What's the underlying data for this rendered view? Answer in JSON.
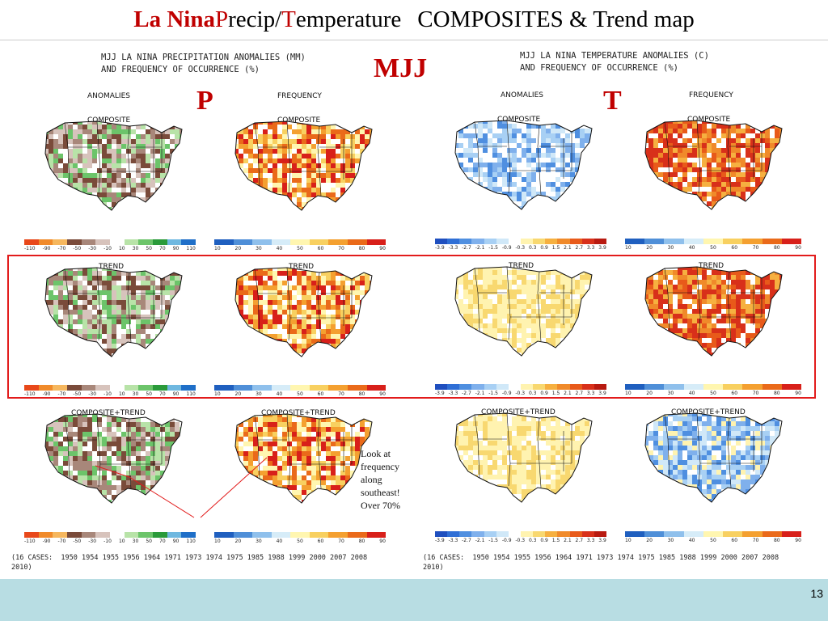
{
  "title": {
    "part1": "La Nina ",
    "part2": "P",
    "part3": "recip/",
    "part4": "T",
    "part5": "emperature",
    "part6": "COMPOSITES & Trend map"
  },
  "labels": {
    "season": "MJJ",
    "p": "P",
    "t": "T"
  },
  "precip_header": "MJJ LA NINA PRECIPITATION ANOMALIES (MM)\nAND FREQUENCY OF OCCURRENCE (%)",
  "temp_header": "MJJ LA NINA TEMPERATURE ANOMALIES (C)\nAND FREQUENCY OF OCCURRENCE (%)",
  "col_headers": {
    "anomalies": "ANOMALIES",
    "frequency": "FREQUENCY"
  },
  "row_labels": {
    "composite": "COMPOSITE",
    "trend": "TREND",
    "composite_trend": "COMPOSITE+TREND"
  },
  "colorbars": {
    "precip_ticks": [
      "-110",
      "-90",
      "-70",
      "-50",
      "-30",
      "-10",
      "10",
      "30",
      "50",
      "70",
      "90",
      "110"
    ],
    "freq_ticks": [
      "10",
      "20",
      "30",
      "40",
      "50",
      "60",
      "70",
      "80",
      "90"
    ],
    "temp_ticks": [
      "-3.9",
      "-3.3",
      "-2.7",
      "-2.1",
      "-1.5",
      "-0.9",
      "-0.3",
      "0.3",
      "0.9",
      "1.5",
      "2.1",
      "2.7",
      "3.3",
      "3.9"
    ],
    "precip_colors": [
      "#e8481a",
      "#f08a2a",
      "#f6b75e",
      "#7a4b3a",
      "#a8877a",
      "#d7c3bc",
      "#ffffff",
      "#b8e3a8",
      "#6cc46a",
      "#2a9a3a",
      "#6fb8e0",
      "#1f6fc8"
    ],
    "freq_colors": [
      "#1f5fbf",
      "#4f8fd8",
      "#8fc0ec",
      "#d6ecf8",
      "#fff6b0",
      "#f8d060",
      "#f4a030",
      "#ea6a1a",
      "#d8201a"
    ],
    "temp_colors": [
      "#1f4fbf",
      "#2f6fd6",
      "#4f8fe0",
      "#7fb0ec",
      "#a8d0f4",
      "#d0e8f8",
      "#ffffff",
      "#fff3b0",
      "#f8d870",
      "#f6b040",
      "#f08a2a",
      "#e85a1a",
      "#d8301a",
      "#b81a10"
    ]
  },
  "note": "Look at frequency along southeast! Over 70%",
  "cases": "(16 CASES:  1950 1954 1955 1956 1964 1971 1973 1974 1975 1985 1988 1999 2000 2007 2008\n2010)",
  "page_number": "13"
}
